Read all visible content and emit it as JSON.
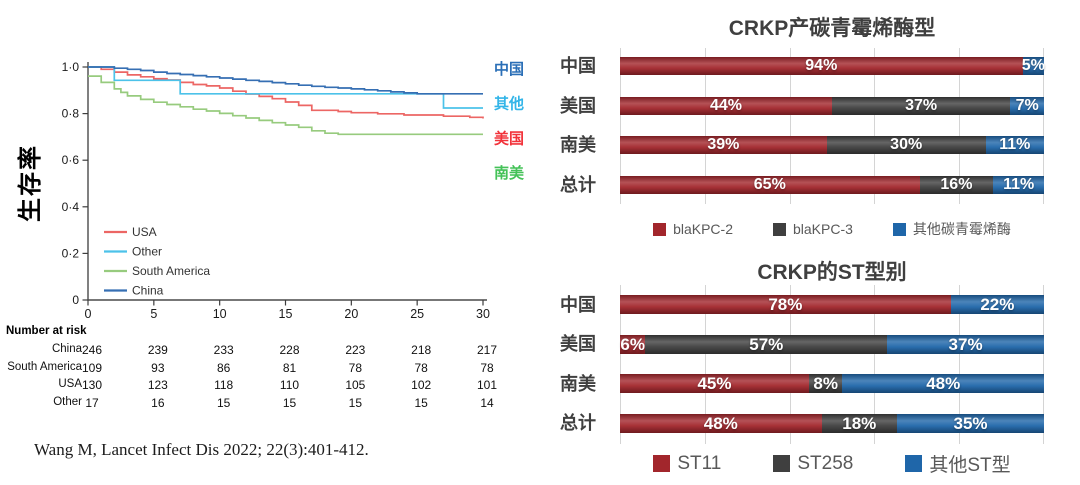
{
  "footer": {
    "citation": "Wang M, Lancet Infect Dis 2022; 22(3):401-412."
  },
  "chart_data": [
    {
      "type": "line",
      "subtype": "kaplan-meier-survival",
      "title": "",
      "xlabel": "",
      "ylabel": "生存率",
      "xlim": [
        0,
        30
      ],
      "ylim": [
        0,
        1.0
      ],
      "grid": false,
      "legend_position": "inside-lower-left",
      "ytick_labels": [
        "1·0",
        "0·8",
        "0·6",
        "0·4",
        "0·2",
        "0"
      ],
      "ytick_values": [
        1.0,
        0.8,
        0.6,
        0.4,
        0.2,
        0
      ],
      "xtick_labels": [
        "0",
        "5",
        "10",
        "15",
        "20",
        "25",
        "30"
      ],
      "xtick_values": [
        0,
        5,
        10,
        15,
        20,
        25,
        30
      ],
      "series": [
        {
          "name": "USA",
          "color": "#ec6664",
          "steps": [
            [
              0,
              1
            ],
            [
              1,
              0.99
            ],
            [
              2,
              0.978
            ],
            [
              3,
              0.966
            ],
            [
              4,
              0.958
            ],
            [
              5,
              0.95
            ],
            [
              6,
              0.944
            ],
            [
              7,
              0.934
            ],
            [
              8,
              0.925
            ],
            [
              9,
              0.919
            ],
            [
              10,
              0.91
            ],
            [
              11,
              0.896
            ],
            [
              12,
              0.884
            ],
            [
              13,
              0.874
            ],
            [
              14,
              0.864
            ],
            [
              15,
              0.85
            ],
            [
              16,
              0.835
            ],
            [
              17,
              0.814
            ],
            [
              19,
              0.809
            ],
            [
              20,
              0.804
            ],
            [
              22,
              0.799
            ],
            [
              24,
              0.794
            ],
            [
              27,
              0.789
            ],
            [
              29,
              0.784
            ],
            [
              30,
              0.779
            ]
          ]
        },
        {
          "name": "Other",
          "color": "#4cc2e9",
          "steps": [
            [
              0,
              1
            ],
            [
              2,
              0.943
            ],
            [
              7,
              0.885
            ],
            [
              27,
              0.824
            ],
            [
              30,
              0.824
            ]
          ]
        },
        {
          "name": "South America",
          "color": "#97cb7e",
          "steps": [
            [
              0,
              0.961
            ],
            [
              1,
              0.934
            ],
            [
              2,
              0.906
            ],
            [
              2.5,
              0.891
            ],
            [
              3,
              0.876
            ],
            [
              4,
              0.861
            ],
            [
              5,
              0.849
            ],
            [
              6,
              0.839
            ],
            [
              7,
              0.829
            ],
            [
              8,
              0.819
            ],
            [
              9,
              0.811
            ],
            [
              10,
              0.801
            ],
            [
              11,
              0.791
            ],
            [
              12,
              0.781
            ],
            [
              13,
              0.771
            ],
            [
              14,
              0.761
            ],
            [
              15,
              0.751
            ],
            [
              16,
              0.741
            ],
            [
              17,
              0.726
            ],
            [
              18,
              0.716
            ],
            [
              19,
              0.711
            ],
            [
              30,
              0.711
            ]
          ]
        },
        {
          "name": "China",
          "color": "#366fb3",
          "steps": [
            [
              0,
              1
            ],
            [
              2,
              0.995
            ],
            [
              3,
              0.99
            ],
            [
              4,
              0.985
            ],
            [
              5,
              0.978
            ],
            [
              6,
              0.972
            ],
            [
              7,
              0.968
            ],
            [
              8,
              0.963
            ],
            [
              9,
              0.958
            ],
            [
              10,
              0.953
            ],
            [
              11,
              0.948
            ],
            [
              12,
              0.943
            ],
            [
              13,
              0.938
            ],
            [
              14,
              0.933
            ],
            [
              15,
              0.928
            ],
            [
              16,
              0.922
            ],
            [
              17,
              0.917
            ],
            [
              18,
              0.913
            ],
            [
              19,
              0.91
            ],
            [
              20,
              0.906
            ],
            [
              21,
              0.902
            ],
            [
              22,
              0.898
            ],
            [
              23,
              0.893
            ],
            [
              24,
              0.889
            ],
            [
              25,
              0.885
            ],
            [
              30,
              0.885
            ]
          ]
        }
      ],
      "right_labels": [
        {
          "text": "中国",
          "color": "#2b6fb7"
        },
        {
          "text": "其他",
          "color": "#33b5e8"
        },
        {
          "text": "美国",
          "color": "#f2333b"
        },
        {
          "text": "南美",
          "color": "#44c258"
        }
      ],
      "number_at_risk": {
        "title": "Number at risk",
        "rows": [
          {
            "label": "China",
            "values": [
              "246",
              "239",
              "233",
              "228",
              "223",
              "218",
              "217"
            ]
          },
          {
            "label": "South America",
            "values": [
              "109",
              "93",
              "86",
              "81",
              "78",
              "78",
              "78"
            ]
          },
          {
            "label": "USA",
            "values": [
              "130",
              "123",
              "118",
              "110",
              "105",
              "102",
              "101"
            ]
          },
          {
            "label": "Other",
            "values": [
              "17",
              "16",
              "15",
              "15",
              "15",
              "15",
              "14"
            ]
          }
        ]
      }
    },
    {
      "type": "bar",
      "orientation": "horizontal",
      "stacked": true,
      "normalized_to_full_width": true,
      "title": "CRKP产碳青霉烯酶型",
      "categories": [
        "中国",
        "美国",
        "南美",
        "总计"
      ],
      "series": [
        {
          "name": "blaKPC-2",
          "color": "#a2262c",
          "values": [
            94,
            44,
            39,
            65
          ]
        },
        {
          "name": "blaKPC-3",
          "color": "#3f3f3f",
          "values": [
            0,
            37,
            30,
            16
          ]
        },
        {
          "name": "其他碳青霉烯酶",
          "color": "#1f66a9",
          "values": [
            5,
            7,
            11,
            11
          ]
        }
      ],
      "value_suffix": "%",
      "xgrid_ticks": [
        0,
        20,
        40,
        60,
        80,
        100
      ]
    },
    {
      "type": "bar",
      "orientation": "horizontal",
      "stacked": true,
      "normalized_to_full_width": true,
      "title": "CRKP的ST型别",
      "categories": [
        "中国",
        "美国",
        "南美",
        "总计"
      ],
      "series": [
        {
          "name": "ST11",
          "color": "#a2262c",
          "values": [
            78,
            6,
            45,
            48
          ]
        },
        {
          "name": "ST258",
          "color": "#3f3f3f",
          "values": [
            0,
            57,
            8,
            18
          ]
        },
        {
          "name": "其他ST型",
          "color": "#1f66a9",
          "values": [
            22,
            37,
            48,
            35
          ]
        }
      ],
      "value_suffix": "%",
      "xgrid_ticks": [
        0,
        20,
        40,
        60,
        80,
        100
      ]
    }
  ]
}
